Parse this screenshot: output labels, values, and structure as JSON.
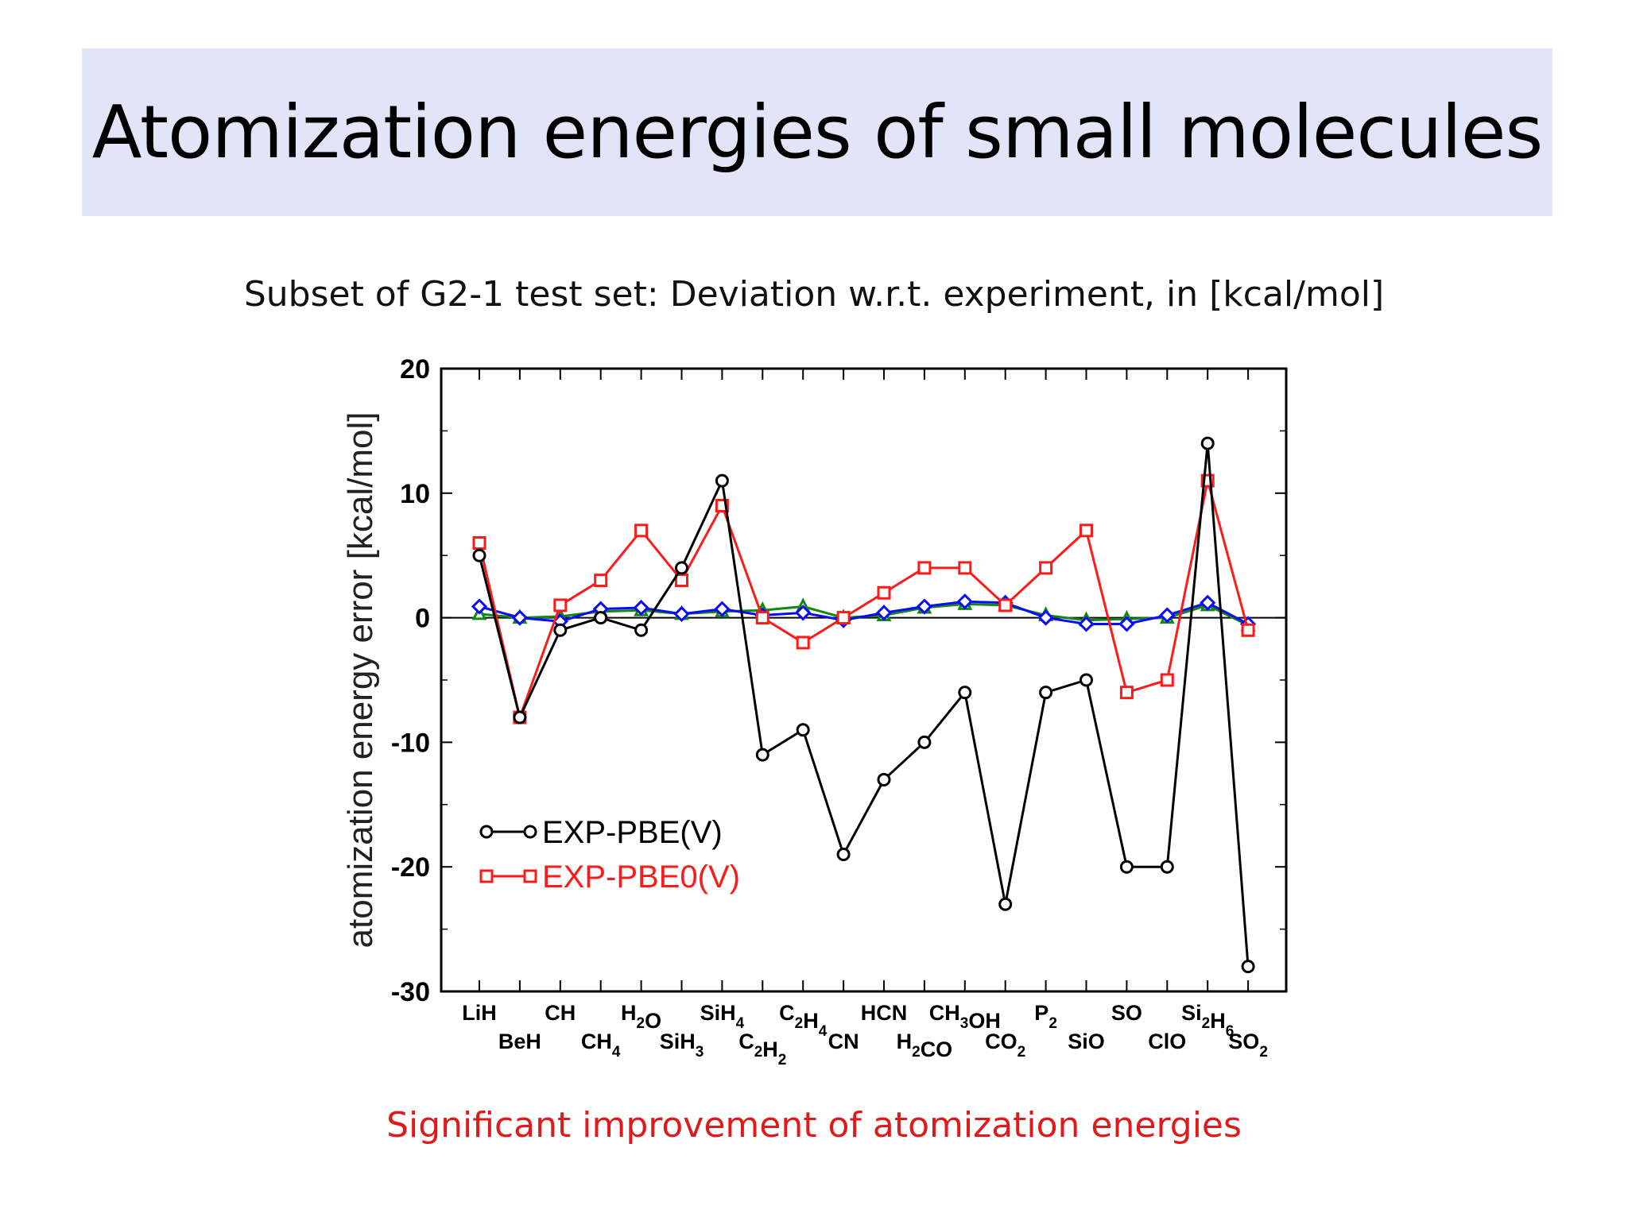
{
  "slide": {
    "title": "Atomization energies of small molecules",
    "subtitle": "Subset of G2-1 test set: Deviation w.r.t. experiment, in [kcal/mol]",
    "footnote": "Significant improvement of atomization energies"
  },
  "colors": {
    "title_band": "#e4e4f9",
    "footnote": "#e01a1a",
    "pbe": "#000000",
    "pbe0": "#ff1a1a",
    "green": "#118811",
    "blue": "#0a0aff"
  },
  "chart_data": {
    "type": "line",
    "ylabel": "atomization energy error [kcal/mol]",
    "ylim": [
      -30,
      20
    ],
    "yticks": [
      -30,
      -20,
      -10,
      0,
      10,
      20
    ],
    "grid": false,
    "legend_position": "lower-left",
    "categories": [
      {
        "base": "LiH",
        "row": 0
      },
      {
        "base": "BeH",
        "row": 1
      },
      {
        "base": "CH",
        "row": 0
      },
      {
        "parts": [
          [
            "CH",
            ""
          ],
          [
            "4",
            "sub"
          ]
        ],
        "row": 1
      },
      {
        "parts": [
          [
            "H",
            ""
          ],
          [
            "2",
            "sub"
          ],
          [
            "O",
            ""
          ]
        ],
        "row": 0
      },
      {
        "parts": [
          [
            "SiH",
            ""
          ],
          [
            "3",
            "sub"
          ]
        ],
        "row": 1
      },
      {
        "parts": [
          [
            "SiH",
            ""
          ],
          [
            "4",
            "sub"
          ]
        ],
        "row": 0
      },
      {
        "parts": [
          [
            "C",
            ""
          ],
          [
            "2",
            "sub"
          ],
          [
            "H",
            ""
          ],
          [
            "2",
            "sub"
          ]
        ],
        "row": 1
      },
      {
        "parts": [
          [
            "C",
            ""
          ],
          [
            "2",
            "sub"
          ],
          [
            "H",
            ""
          ],
          [
            "4",
            "sub"
          ]
        ],
        "row": 0
      },
      {
        "base": "CN",
        "row": 1
      },
      {
        "base": "HCN",
        "row": 0
      },
      {
        "parts": [
          [
            "H",
            ""
          ],
          [
            "2",
            "sub"
          ],
          [
            "CO",
            ""
          ]
        ],
        "row": 1
      },
      {
        "parts": [
          [
            "CH",
            ""
          ],
          [
            "3",
            "sub"
          ],
          [
            "OH",
            ""
          ]
        ],
        "row": 0
      },
      {
        "parts": [
          [
            "CO",
            ""
          ],
          [
            "2",
            "sub"
          ]
        ],
        "row": 1
      },
      {
        "parts": [
          [
            "P",
            ""
          ],
          [
            "2",
            "sub"
          ]
        ],
        "row": 0
      },
      {
        "base": "SiO",
        "row": 1
      },
      {
        "base": "SO",
        "row": 0
      },
      {
        "base": "ClO",
        "row": 1
      },
      {
        "parts": [
          [
            "Si",
            ""
          ],
          [
            "2",
            "sub"
          ],
          [
            "H",
            ""
          ],
          [
            "6",
            "sub"
          ]
        ],
        "row": 0
      },
      {
        "parts": [
          [
            "SO",
            ""
          ],
          [
            "2",
            "sub"
          ]
        ],
        "row": 1
      }
    ],
    "series": [
      {
        "name": "EXP-PBE(V)",
        "marker": "circle",
        "color": "#000000",
        "values": [
          5,
          -8,
          -1,
          0,
          -1,
          4,
          11,
          -11,
          -9,
          -19,
          -13,
          -10,
          -6,
          -23,
          -6,
          -5,
          -20,
          -20,
          14,
          -28
        ]
      },
      {
        "name": "EXP-PBE0(V)",
        "marker": "square",
        "color": "#ff1a1a",
        "values": [
          6,
          -8,
          1,
          3,
          7,
          3,
          9,
          0,
          -2,
          0,
          2,
          4,
          4,
          1,
          4,
          7,
          -6,
          -5,
          11,
          -1
        ]
      },
      {
        "marker": "triangle",
        "color": "#118811",
        "values": [
          0.3,
          0,
          0.1,
          0.5,
          0.6,
          0.3,
          0.5,
          0.6,
          0.9,
          0,
          0.2,
          0.8,
          1.1,
          1,
          0.2,
          -0.2,
          -0.1,
          0,
          1,
          -0.6
        ]
      },
      {
        "marker": "diamond",
        "color": "#0a0aff",
        "values": [
          0.9,
          0,
          -0.3,
          0.7,
          0.8,
          0.3,
          0.7,
          0.2,
          0.4,
          -0.2,
          0.4,
          0.9,
          1.3,
          1.2,
          0,
          -0.5,
          -0.5,
          0.2,
          1.2,
          -0.5
        ]
      }
    ]
  }
}
